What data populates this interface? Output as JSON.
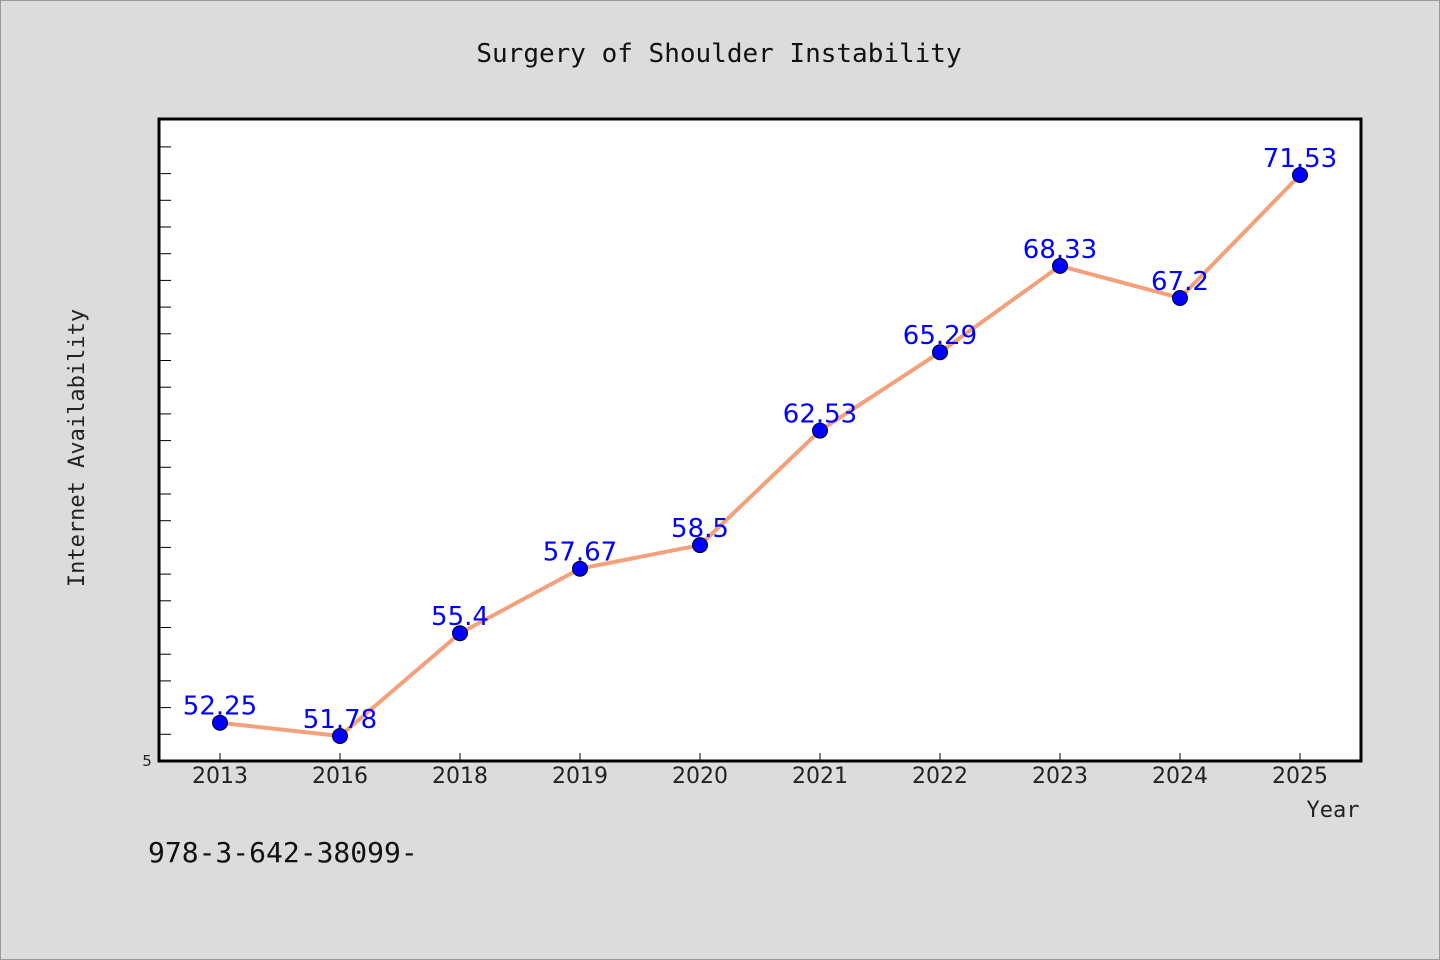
{
  "chart_data": {
    "type": "line",
    "title": "Surgery of Shoulder Instability",
    "xlabel": "Year",
    "ylabel": "Internet Availability",
    "categories": [
      "2013",
      "2016",
      "2018",
      "2019",
      "2020",
      "2021",
      "2022",
      "2023",
      "2024",
      "2025"
    ],
    "series": [
      {
        "values": [
          52.25,
          51.78,
          55.4,
          57.67,
          58.5,
          62.53,
          65.29,
          68.33,
          67.2,
          71.53
        ],
        "labels": [
          "52.25",
          "51.78",
          "55.4",
          "57.67",
          "58.5",
          "62.53",
          "65.29",
          "68.33",
          "67.2",
          "71.53"
        ]
      }
    ],
    "ytick_labels": [
      "5"
    ],
    "ylim": [
      50.9,
      73.5
    ],
    "grid": false,
    "line_color": "#f4a07a",
    "marker_color": "#0000ff",
    "label_color": "#0000ff"
  },
  "footnote": "978-3-642-38099-"
}
